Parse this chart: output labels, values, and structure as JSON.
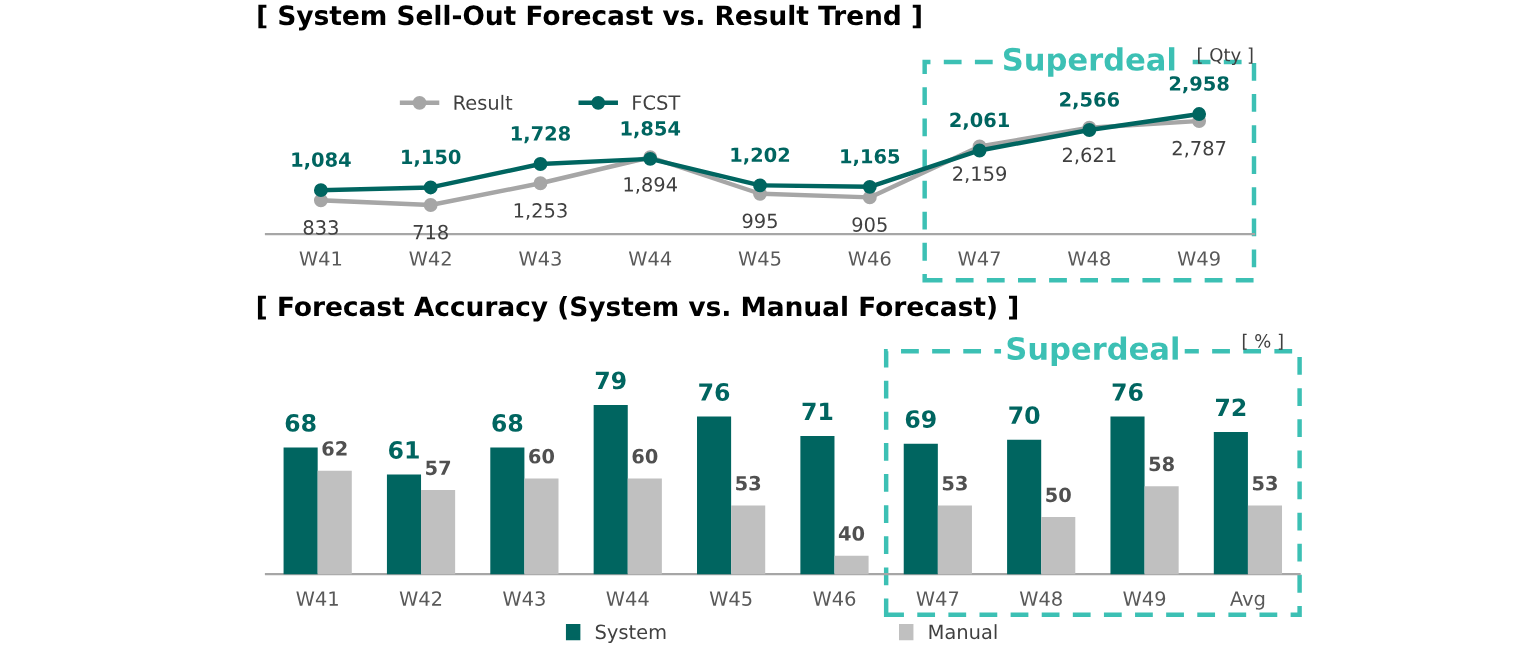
{
  "chart_data": [
    {
      "type": "line",
      "title": "[ System Sell-Out Forecast vs. Result Trend ]",
      "categories": [
        "W41",
        "W42",
        "W43",
        "W44",
        "W45",
        "W46",
        "W47",
        "W48",
        "W49"
      ],
      "series": [
        {
          "name": "Result",
          "color": "#a6a6a6",
          "values": [
            833,
            718,
            1253,
            1894,
            995,
            905,
            2159,
            2621,
            2787
          ],
          "value_labels": [
            "833",
            "718",
            "1,253",
            "1,894",
            "995",
            "905",
            "2,159",
            "2,621",
            "2,787"
          ]
        },
        {
          "name": "FCST",
          "color": "#006560",
          "values": [
            1084,
            1150,
            1728,
            1854,
            1202,
            1165,
            2061,
            2566,
            2958
          ],
          "value_labels": [
            "1,084",
            "1,150",
            "1,728",
            "1,854",
            "1,202",
            "1,165",
            "2,061",
            "2,566",
            "2,958"
          ]
        }
      ],
      "marker": "circle",
      "tick_labels": "x",
      "grid": false,
      "legend": "top left",
      "annotations": [
        "Superdeal",
        "[ Qty ]"
      ]
    },
    {
      "type": "bar",
      "title": "[ Forecast Accuracy (System vs. Manual Forecast) ]",
      "categories": [
        "W41",
        "W42",
        "W43",
        "W44",
        "W45",
        "W46",
        "W47",
        "W48",
        "W49",
        "Avg"
      ],
      "series": [
        {
          "name": "System",
          "color": "#006560",
          "values": [
            68,
            61,
            68,
            79,
            76,
            71,
            69,
            70,
            76,
            72
          ]
        },
        {
          "name": "Manual",
          "color": "#c0c0c0",
          "values": [
            62,
            57,
            60,
            60,
            53,
            40,
            53,
            50,
            58,
            53
          ]
        }
      ],
      "data_labels": true,
      "tick_labels": "x",
      "grid": false,
      "legend": "bottom",
      "annotations": [
        "Superdeal",
        "[ % ]"
      ]
    }
  ]
}
